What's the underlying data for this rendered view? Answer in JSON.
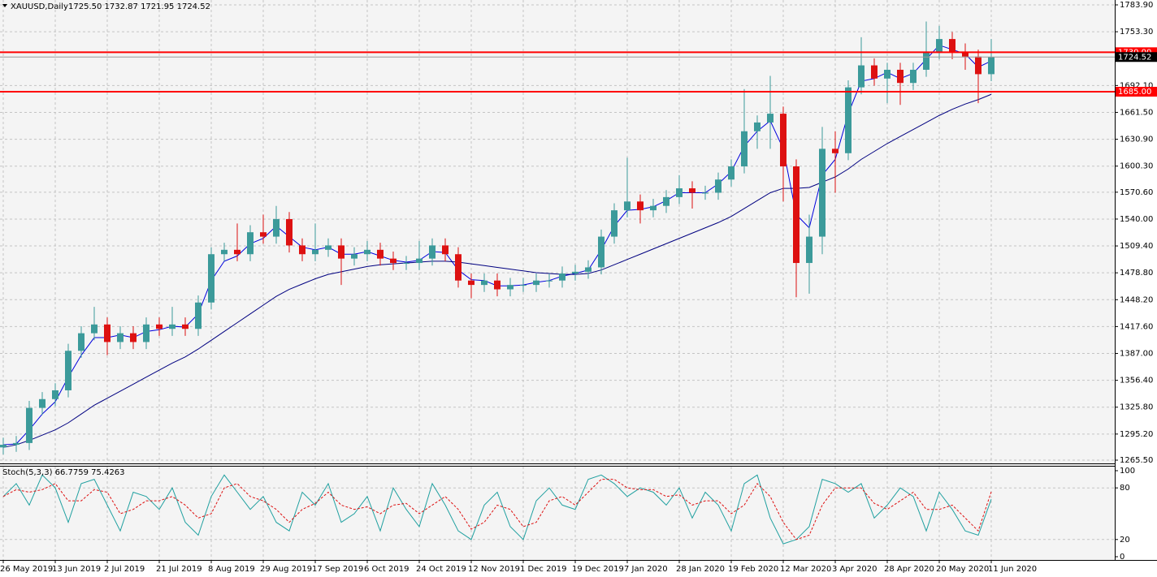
{
  "chart_data": [
    {
      "type": "candlestick",
      "title": "XAUUSD,Daily",
      "subtitle": "1725.50 1732.87 1721.95 1724.52",
      "categories": [
        "26 May 2019",
        null,
        null,
        null,
        "13 Jun 2019",
        null,
        null,
        null,
        "2 Jul 2019",
        null,
        null,
        null,
        "21 Jul 2019",
        null,
        null,
        null,
        "8 Aug 2019",
        null,
        null,
        null,
        "29 Aug 2019",
        null,
        null,
        null,
        "17 Sep 2019",
        null,
        null,
        null,
        "6 Oct 2019",
        null,
        null,
        null,
        "24 Oct 2019",
        null,
        null,
        null,
        "12 Nov 2019",
        null,
        null,
        null,
        "1 Dec 2019",
        null,
        null,
        null,
        "19 Dec 2019",
        null,
        null,
        null,
        "7 Jan 2020",
        null,
        null,
        null,
        "28 Jan 2020",
        null,
        null,
        null,
        "19 Feb 2020",
        null,
        null,
        null,
        "12 Mar 2020",
        null,
        null,
        null,
        "3 Apr 2020",
        null,
        null,
        null,
        "28 Apr 2020",
        null,
        null,
        null,
        "20 May 2020",
        null,
        null,
        null,
        "11 Jun 2020"
      ],
      "open": [
        1280,
        1283,
        1285,
        1325,
        1335,
        1345,
        1390,
        1410,
        1420,
        1400,
        1410,
        1400,
        1420,
        1415,
        1420,
        1415,
        1445,
        1500,
        1505,
        1500,
        1525,
        1520,
        1540,
        1510,
        1500,
        1505,
        1510,
        1495,
        1500,
        1505,
        1495,
        1490,
        1490,
        1495,
        1510,
        1500,
        1470,
        1465,
        1470,
        1460,
        1465,
        1465,
        1470,
        1470,
        1478,
        1480,
        1485,
        1520,
        1550,
        1560,
        1550,
        1555,
        1565,
        1575,
        1570,
        1570,
        1585,
        1600,
        1640,
        1650,
        1660,
        1600,
        1490,
        1520,
        1620,
        1615,
        1690,
        1715,
        1700,
        1710,
        1695,
        1710,
        1730,
        1745,
        1730,
        1725,
        1705
      ],
      "high": [
        1291,
        1293,
        1333,
        1343,
        1353,
        1398,
        1418,
        1440,
        1428,
        1418,
        1418,
        1428,
        1428,
        1440,
        1428,
        1453,
        1508,
        1513,
        1535,
        1533,
        1545,
        1555,
        1548,
        1518,
        1535,
        1518,
        1518,
        1508,
        1515,
        1513,
        1503,
        1498,
        1515,
        1518,
        1518,
        1508,
        1478,
        1478,
        1478,
        1473,
        1473,
        1478,
        1478,
        1486,
        1488,
        1493,
        1528,
        1558,
        1610,
        1568,
        1563,
        1573,
        1590,
        1583,
        1578,
        1593,
        1608,
        1688,
        1658,
        1703,
        1668,
        1608,
        1545,
        1645,
        1640,
        1698,
        1747,
        1723,
        1718,
        1718,
        1718,
        1765,
        1760,
        1753,
        1740,
        1733,
        1745
      ],
      "low": [
        1272,
        1275,
        1277,
        1317,
        1327,
        1337,
        1382,
        1402,
        1385,
        1392,
        1392,
        1392,
        1407,
        1407,
        1407,
        1407,
        1437,
        1492,
        1492,
        1492,
        1512,
        1512,
        1502,
        1492,
        1492,
        1497,
        1465,
        1487,
        1492,
        1487,
        1482,
        1482,
        1482,
        1487,
        1492,
        1462,
        1450,
        1457,
        1452,
        1452,
        1457,
        1457,
        1462,
        1462,
        1470,
        1472,
        1477,
        1512,
        1542,
        1535,
        1542,
        1547,
        1557,
        1552,
        1562,
        1562,
        1577,
        1592,
        1620,
        1620,
        1560,
        1451,
        1455,
        1500,
        1570,
        1607,
        1682,
        1692,
        1672,
        1670,
        1687,
        1702,
        1722,
        1722,
        1710,
        1672,
        1697
      ],
      "close": [
        1283,
        1285,
        1325,
        1335,
        1345,
        1390,
        1410,
        1420,
        1400,
        1410,
        1400,
        1420,
        1415,
        1420,
        1415,
        1445,
        1500,
        1505,
        1500,
        1525,
        1520,
        1540,
        1510,
        1500,
        1505,
        1510,
        1495,
        1500,
        1505,
        1495,
        1490,
        1490,
        1495,
        1510,
        1500,
        1470,
        1465,
        1470,
        1460,
        1465,
        1465,
        1470,
        1470,
        1478,
        1480,
        1485,
        1520,
        1550,
        1560,
        1550,
        1555,
        1565,
        1575,
        1570,
        1570,
        1585,
        1600,
        1640,
        1650,
        1660,
        1600,
        1490,
        1520,
        1620,
        1615,
        1690,
        1715,
        1700,
        1710,
        1695,
        1710,
        1730,
        1745,
        1730,
        1725,
        1705,
        1724.52
      ],
      "up_color": "#3c9a9a",
      "down_color": "#dd1111",
      "lines": [
        {
          "color": "#0000dd",
          "values": [
            1283,
            1284,
            1300,
            1318,
            1332,
            1360,
            1385,
            1405,
            1405,
            1408,
            1405,
            1412,
            1414,
            1418,
            1417,
            1432,
            1470,
            1492,
            1498,
            1512,
            1518,
            1532,
            1520,
            1508,
            1505,
            1508,
            1500,
            1500,
            1503,
            1498,
            1493,
            1491,
            1493,
            1503,
            1502,
            1482,
            1471,
            1470,
            1464,
            1464,
            1465,
            1468,
            1470,
            1475,
            1478,
            1482,
            1505,
            1532,
            1550,
            1551,
            1554,
            1561,
            1570,
            1570,
            1570,
            1580,
            1594,
            1623,
            1640,
            1652,
            1620,
            1545,
            1530,
            1590,
            1608,
            1660,
            1697,
            1700,
            1707,
            1700,
            1706,
            1722,
            1738,
            1733,
            1728,
            1713,
            1720
          ]
        },
        {
          "color": "#000080",
          "values": [
            1280,
            1283,
            1288,
            1294,
            1300,
            1308,
            1318,
            1328,
            1336,
            1344,
            1352,
            1360,
            1368,
            1376,
            1383,
            1392,
            1402,
            1412,
            1422,
            1432,
            1442,
            1452,
            1460,
            1466,
            1472,
            1477,
            1480,
            1483,
            1486,
            1488,
            1489,
            1490,
            1491,
            1492,
            1492,
            1491,
            1489,
            1487,
            1485,
            1483,
            1481,
            1479,
            1478,
            1477,
            1477,
            1478,
            1482,
            1488,
            1494,
            1500,
            1506,
            1512,
            1518,
            1524,
            1530,
            1536,
            1543,
            1552,
            1561,
            1570,
            1575,
            1575,
            1576,
            1582,
            1588,
            1597,
            1608,
            1617,
            1626,
            1634,
            1642,
            1650,
            1658,
            1665,
            1671,
            1676,
            1682
          ]
        }
      ],
      "ylim": [
        1265.5,
        1783.9
      ],
      "yticks": [
        {
          "value": 1783.9,
          "label": "1783.90"
        },
        {
          "value": 1753.3,
          "label": "1753.30"
        },
        {
          "value": 1692.1,
          "label": "1692.10"
        },
        {
          "value": 1661.5,
          "label": "1661.50"
        },
        {
          "value": 1630.9,
          "label": "1630.90"
        },
        {
          "value": 1600.3,
          "label": "1600.30"
        },
        {
          "value": 1570.6,
          "label": "1570.60"
        },
        {
          "value": 1540.0,
          "label": "1540.00"
        },
        {
          "value": 1509.4,
          "label": "1509.40"
        },
        {
          "value": 1478.8,
          "label": "1478.80"
        },
        {
          "value": 1448.2,
          "label": "1448.20"
        },
        {
          "value": 1417.6,
          "label": "1417.60"
        },
        {
          "value": 1387.0,
          "label": "1387.00"
        },
        {
          "value": 1356.4,
          "label": "1356.40"
        },
        {
          "value": 1325.8,
          "label": "1325.80"
        },
        {
          "value": 1295.2,
          "label": "1295.20"
        },
        {
          "value": 1265.5,
          "label": "1265.50"
        }
      ],
      "hlines": [
        {
          "value": 1730,
          "label": "1730.00",
          "color": "#ff0000"
        },
        {
          "value": 1685,
          "label": "1685.00",
          "color": "#ff0000"
        }
      ],
      "current_price": {
        "value": 1724.52,
        "label": "1724.52",
        "color": "#000000"
      },
      "grid": true
    },
    {
      "type": "line",
      "title": "Stoch(5,3,3) 66.7759 75.4263",
      "series": [
        {
          "color": "#20a0a0",
          "dash": false,
          "values": [
            70,
            85,
            60,
            95,
            80,
            40,
            85,
            90,
            60,
            30,
            75,
            70,
            55,
            80,
            40,
            25,
            70,
            95,
            75,
            55,
            70,
            40,
            30,
            75,
            60,
            85,
            40,
            50,
            70,
            30,
            80,
            55,
            35,
            85,
            60,
            30,
            20,
            60,
            75,
            35,
            20,
            65,
            80,
            60,
            55,
            90,
            95,
            85,
            70,
            80,
            75,
            60,
            80,
            45,
            75,
            60,
            30,
            85,
            95,
            45,
            15,
            20,
            35,
            90,
            85,
            75,
            85,
            45,
            60,
            80,
            70,
            30,
            75,
            55,
            30,
            25,
            66.7759
          ]
        },
        {
          "color": "#dd1111",
          "dash": true,
          "values": [
            70,
            78,
            75,
            78,
            85,
            65,
            65,
            78,
            75,
            50,
            55,
            65,
            65,
            70,
            60,
            45,
            50,
            80,
            85,
            70,
            65,
            55,
            40,
            55,
            62,
            75,
            60,
            55,
            58,
            50,
            60,
            62,
            50,
            60,
            70,
            55,
            32,
            40,
            60,
            55,
            35,
            40,
            65,
            70,
            60,
            75,
            90,
            90,
            80,
            78,
            78,
            70,
            72,
            60,
            65,
            65,
            50,
            60,
            85,
            70,
            40,
            20,
            25,
            60,
            80,
            80,
            80,
            62,
            55,
            65,
            75,
            55,
            55,
            60,
            45,
            30,
            75.4263
          ]
        }
      ],
      "ylim": [
        0,
        100
      ],
      "yticks": [
        100,
        80,
        20,
        0
      ],
      "grid": true
    }
  ]
}
